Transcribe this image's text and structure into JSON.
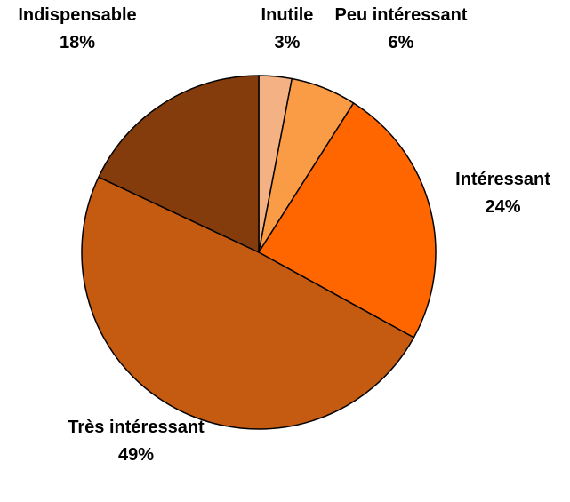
{
  "chart_data": {
    "type": "pie",
    "categories": [
      "Inutile",
      "Peu intéressant",
      "Intéressant",
      "Très intéressant",
      "Indispensable"
    ],
    "values": [
      3,
      6,
      24,
      49,
      18
    ],
    "value_labels": [
      "3%",
      "6%",
      "24%",
      "49%",
      "18%"
    ],
    "colors": [
      "#f4b183",
      "#fa9c45",
      "#ff6600",
      "#c55a11",
      "#843c0c"
    ]
  }
}
